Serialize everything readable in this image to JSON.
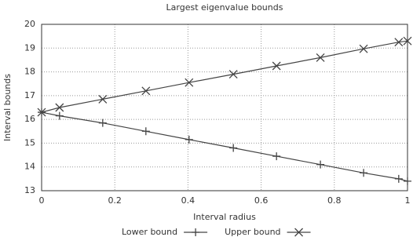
{
  "chart_data": {
    "type": "line",
    "title": "Largest eigenvalue bounds",
    "x_label": "Interval radius",
    "y_label": "Interval bounds",
    "x": [
      0,
      0.049,
      0.167,
      0.285,
      0.403,
      0.524,
      0.642,
      0.762,
      0.88,
      0.976,
      1
    ],
    "series": [
      {
        "name": "Lower bound",
        "color": "#444444",
        "marker": "plus",
        "values": [
          16.3,
          16.15,
          15.85,
          15.5,
          15.15,
          14.8,
          14.45,
          14.1,
          13.75,
          13.5,
          13.4
        ]
      },
      {
        "name": "Upper bound",
        "color": "#444444",
        "marker": "cross",
        "values": [
          16.3,
          16.5,
          16.85,
          17.2,
          17.55,
          17.9,
          18.25,
          18.6,
          18.97,
          19.25,
          19.3
        ]
      }
    ],
    "xlim": [
      0,
      1
    ],
    "xticks": [
      0,
      0.2,
      0.4,
      0.6,
      0.8,
      1
    ],
    "ylim": [
      13,
      20
    ],
    "yticks": [
      13,
      14,
      15,
      16,
      17,
      18,
      19,
      20
    ],
    "grid": true,
    "legend": "bottom"
  }
}
